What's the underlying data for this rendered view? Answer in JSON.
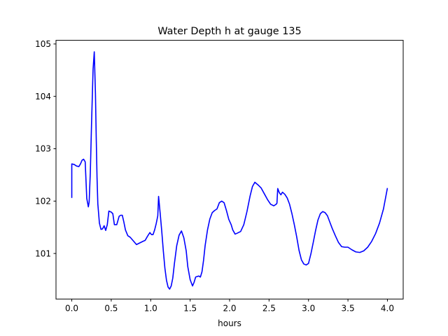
{
  "chart_data": {
    "type": "line",
    "title": "Water Depth h at gauge 135",
    "xlabel": "hours",
    "ylabel": "",
    "xlim": [
      -0.2,
      4.2
    ],
    "ylim": [
      100.13,
      105.07
    ],
    "xticks": [
      0.0,
      0.5,
      1.0,
      1.5,
      2.0,
      2.5,
      3.0,
      3.5,
      4.0
    ],
    "xtick_labels": [
      "0.0",
      "0.5",
      "1.0",
      "1.5",
      "2.0",
      "2.5",
      "3.0",
      "3.5",
      "4.0"
    ],
    "yticks": [
      101,
      102,
      103,
      104,
      105
    ],
    "ytick_labels": [
      "101",
      "102",
      "103",
      "104",
      "105"
    ],
    "grid": false,
    "legend": "none",
    "series": [
      {
        "color": "#0000ff",
        "x": [
          0.0,
          0.0,
          0.03,
          0.06,
          0.09,
          0.11,
          0.13,
          0.15,
          0.17,
          0.19,
          0.21,
          0.22,
          0.235,
          0.25,
          0.27,
          0.285,
          0.3,
          0.31,
          0.32,
          0.33,
          0.35,
          0.37,
          0.39,
          0.41,
          0.43,
          0.45,
          0.47,
          0.5,
          0.52,
          0.54,
          0.57,
          0.6,
          0.62,
          0.64,
          0.66,
          0.68,
          0.71,
          0.74,
          0.78,
          0.82,
          0.86,
          0.9,
          0.93,
          0.96,
          0.99,
          1.01,
          1.03,
          1.05,
          1.07,
          1.09,
          1.1,
          1.12,
          1.14,
          1.16,
          1.18,
          1.2,
          1.22,
          1.24,
          1.26,
          1.28,
          1.3,
          1.33,
          1.36,
          1.39,
          1.42,
          1.45,
          1.47,
          1.5,
          1.53,
          1.55,
          1.57,
          1.59,
          1.61,
          1.63,
          1.65,
          1.67,
          1.69,
          1.72,
          1.75,
          1.78,
          1.81,
          1.84,
          1.87,
          1.9,
          1.93,
          1.96,
          1.99,
          2.02,
          2.04,
          2.07,
          2.1,
          2.14,
          2.18,
          2.22,
          2.26,
          2.29,
          2.32,
          2.36,
          2.4,
          2.44,
          2.48,
          2.52,
          2.56,
          2.59,
          2.6,
          2.61,
          2.63,
          2.65,
          2.67,
          2.7,
          2.73,
          2.76,
          2.79,
          2.82,
          2.85,
          2.88,
          2.91,
          2.94,
          2.97,
          3.0,
          3.03,
          3.06,
          3.09,
          3.12,
          3.15,
          3.18,
          3.21,
          3.24,
          3.27,
          3.3,
          3.34,
          3.38,
          3.42,
          3.46,
          3.5,
          3.55,
          3.6,
          3.65,
          3.7,
          3.75,
          3.8,
          3.85,
          3.9,
          3.95,
          4.0
        ],
        "y": [
          102.06,
          102.71,
          102.7,
          102.67,
          102.66,
          102.71,
          102.78,
          102.8,
          102.75,
          102.05,
          101.89,
          101.98,
          102.55,
          103.45,
          104.52,
          104.85,
          104.05,
          103.2,
          102.45,
          101.95,
          101.58,
          101.46,
          101.47,
          101.53,
          101.44,
          101.55,
          101.81,
          101.79,
          101.76,
          101.55,
          101.55,
          101.71,
          101.73,
          101.73,
          101.6,
          101.45,
          101.34,
          101.31,
          101.24,
          101.17,
          101.2,
          101.23,
          101.25,
          101.33,
          101.4,
          101.36,
          101.36,
          101.45,
          101.57,
          101.72,
          102.09,
          101.77,
          101.43,
          101.05,
          100.72,
          100.49,
          100.36,
          100.32,
          100.38,
          100.53,
          100.8,
          101.15,
          101.35,
          101.43,
          101.3,
          101.05,
          100.75,
          100.5,
          100.38,
          100.45,
          100.55,
          100.56,
          100.57,
          100.55,
          100.65,
          100.87,
          101.15,
          101.45,
          101.66,
          101.78,
          101.82,
          101.85,
          101.97,
          102.0,
          101.97,
          101.82,
          101.65,
          101.55,
          101.45,
          101.37,
          101.39,
          101.42,
          101.55,
          101.8,
          102.1,
          102.28,
          102.36,
          102.31,
          102.25,
          102.14,
          102.03,
          101.94,
          101.91,
          101.94,
          101.96,
          102.24,
          102.16,
          102.12,
          102.17,
          102.13,
          102.06,
          101.94,
          101.76,
          101.55,
          101.32,
          101.06,
          100.88,
          100.8,
          100.78,
          100.81,
          100.99,
          101.21,
          101.44,
          101.64,
          101.76,
          101.8,
          101.78,
          101.72,
          101.6,
          101.48,
          101.34,
          101.21,
          101.13,
          101.12,
          101.12,
          101.07,
          101.03,
          101.02,
          101.05,
          101.12,
          101.23,
          101.38,
          101.58,
          101.85,
          102.25
        ]
      }
    ]
  }
}
